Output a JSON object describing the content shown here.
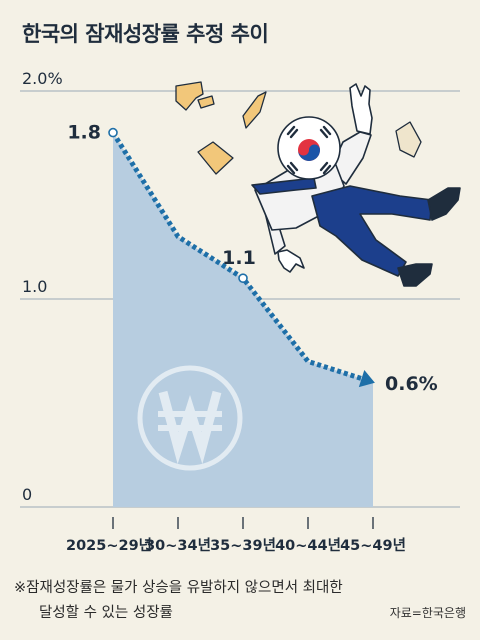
{
  "title": "한국의 잠재성장률 추정 추이",
  "chart_data": {
    "type": "area",
    "categories": [
      "2025~29년",
      "30~34년",
      "35~39년",
      "40~44년",
      "45~49년"
    ],
    "values": [
      1.8,
      1.3,
      1.1,
      0.7,
      0.6
    ],
    "data_labels": [
      {
        "index": 0,
        "text": "1.8"
      },
      {
        "index": 2,
        "text": "1.1"
      },
      {
        "index": 4,
        "text": "0.6%"
      }
    ],
    "y_ticks": [
      "0",
      "1.0",
      "2.0%"
    ],
    "ylim": [
      0,
      2.0
    ],
    "grid": true,
    "colors": {
      "area": "#b7cde0",
      "line": "#1e6fa8",
      "grid": "#9aa9b6",
      "watermark": "#ffffff"
    }
  },
  "note": {
    "line1": "※잠재성장률은 물가 상승을 유발하지 않으면서 최대한",
    "line2": "달성할 수 있는 성장률"
  },
  "source": "자료=한국은행"
}
